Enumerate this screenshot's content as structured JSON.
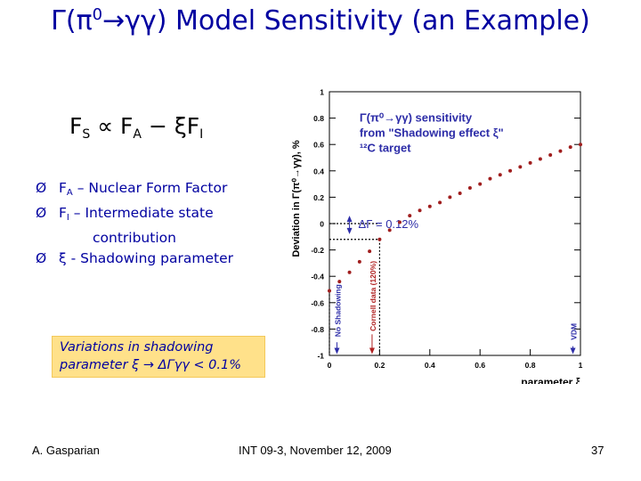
{
  "slide": {
    "title_gamma": "Γ(π",
    "title_zero": "0",
    "title_rest": "→γγ) Model Sensitivity (an Example)",
    "formula": {
      "fs": "F",
      "fs_sub": "S",
      "prop": " ∝ F",
      "fa_sub": "A",
      "minus": " − ξF",
      "fi_sub": "I"
    },
    "bullets": [
      {
        "marker": "Ø",
        "lead": "F",
        "lead_sub": "A",
        "text": " – Nuclear Form Factor"
      },
      {
        "marker": "Ø",
        "lead": "F",
        "lead_sub": "I",
        "text": " –  Intermediate state"
      },
      {
        "marker": "",
        "lead": "",
        "lead_sub": "",
        "text": "contribution"
      },
      {
        "marker": "Ø",
        "lead": "ξ",
        "lead_sub": "",
        "text": " - Shadowing parameter"
      }
    ],
    "callout": {
      "line1": "Variations in shadowing",
      "line2": "parameter ξ  → ΔΓγγ  < 0.1%"
    },
    "footer": {
      "author": "A. Gasparian",
      "conference": "INT 09-3, November 12, 2009",
      "page": "37"
    }
  },
  "colors": {
    "title": "#0000a0",
    "callout_bg": "#ffe18a",
    "points": "#a01e1e",
    "annotation": "#2d2da8",
    "vline_red": "#b02020"
  },
  "chart_data": {
    "type": "scatter",
    "title": "",
    "xlabel": "parameter ξ",
    "ylabel": "Deviation in Γ(π⁰→γγ), %",
    "xlim": [
      0,
      1
    ],
    "ylim": [
      -1,
      1
    ],
    "xticks": [
      "0",
      "0.2",
      "0.4",
      "0.6",
      "0.8",
      "1"
    ],
    "yticks": [
      "-1",
      "-0.8",
      "-0.6",
      "-0.4",
      "-0.2",
      "0",
      "0.2",
      "0.4",
      "0.6",
      "0.8",
      "1"
    ],
    "annotation_lines": [
      "Γ(π⁰→γγ) sensitivity",
      "from \"Shadowing effect  ξ\"",
      "¹²C target"
    ],
    "delta_label": "ΔΓ = 0.12%",
    "vline_labels": {
      "no_shadowing": "No Shadowing",
      "cornell": "Cornell data (120%)",
      "vdm": "VDM"
    },
    "series": [
      {
        "x": [
          0.0,
          0.04,
          0.08,
          0.12,
          0.16,
          0.2,
          0.24,
          0.28,
          0.32,
          0.36,
          0.4,
          0.44,
          0.48,
          0.52,
          0.56,
          0.6,
          0.64,
          0.68,
          0.72,
          0.76,
          0.8,
          0.84,
          0.88,
          0.92,
          0.96,
          1.0
        ],
        "y": [
          -0.51,
          -0.44,
          -0.37,
          -0.29,
          -0.21,
          -0.12,
          -0.05,
          0.01,
          0.06,
          0.1,
          0.13,
          0.16,
          0.2,
          0.23,
          0.27,
          0.3,
          0.34,
          0.37,
          0.4,
          0.43,
          0.46,
          0.49,
          0.52,
          0.55,
          0.58,
          0.6
        ]
      }
    ]
  }
}
